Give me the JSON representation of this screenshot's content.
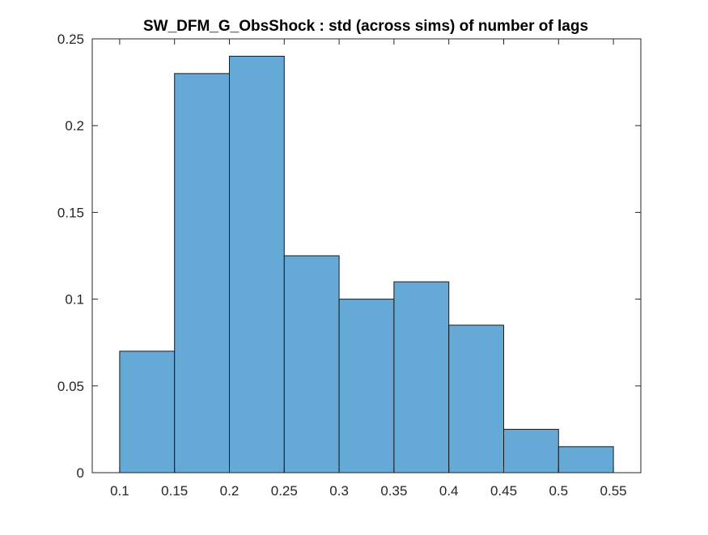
{
  "chart_data": {
    "type": "bar",
    "title": "SW_DFM_G_ObsShock : std (across sims) of number of lags",
    "xlabel": "",
    "ylabel": "",
    "bin_edges": [
      0.1,
      0.15,
      0.2,
      0.25,
      0.3,
      0.35,
      0.4,
      0.45,
      0.5,
      0.55
    ],
    "values": [
      0.07,
      0.23,
      0.24,
      0.125,
      0.1,
      0.11,
      0.085,
      0.025,
      0.015
    ],
    "xlim": [
      0.075,
      0.575
    ],
    "ylim": [
      0,
      0.25
    ],
    "xticks": [
      0.1,
      0.15,
      0.2,
      0.25,
      0.3,
      0.35,
      0.4,
      0.45,
      0.5,
      0.55
    ],
    "xtick_labels": [
      "0.1",
      "0.15",
      "0.2",
      "0.25",
      "0.3",
      "0.35",
      "0.4",
      "0.45",
      "0.5",
      "0.55"
    ],
    "yticks": [
      0,
      0.05,
      0.1,
      0.15,
      0.2,
      0.25
    ],
    "ytick_labels": [
      "0",
      "0.05",
      "0.1",
      "0.15",
      "0.2",
      "0.25"
    ],
    "grid": false,
    "colors": {
      "bar_fill": "#65a9d7",
      "bar_edge": "#1a1a1a",
      "axes": "#262626"
    }
  }
}
